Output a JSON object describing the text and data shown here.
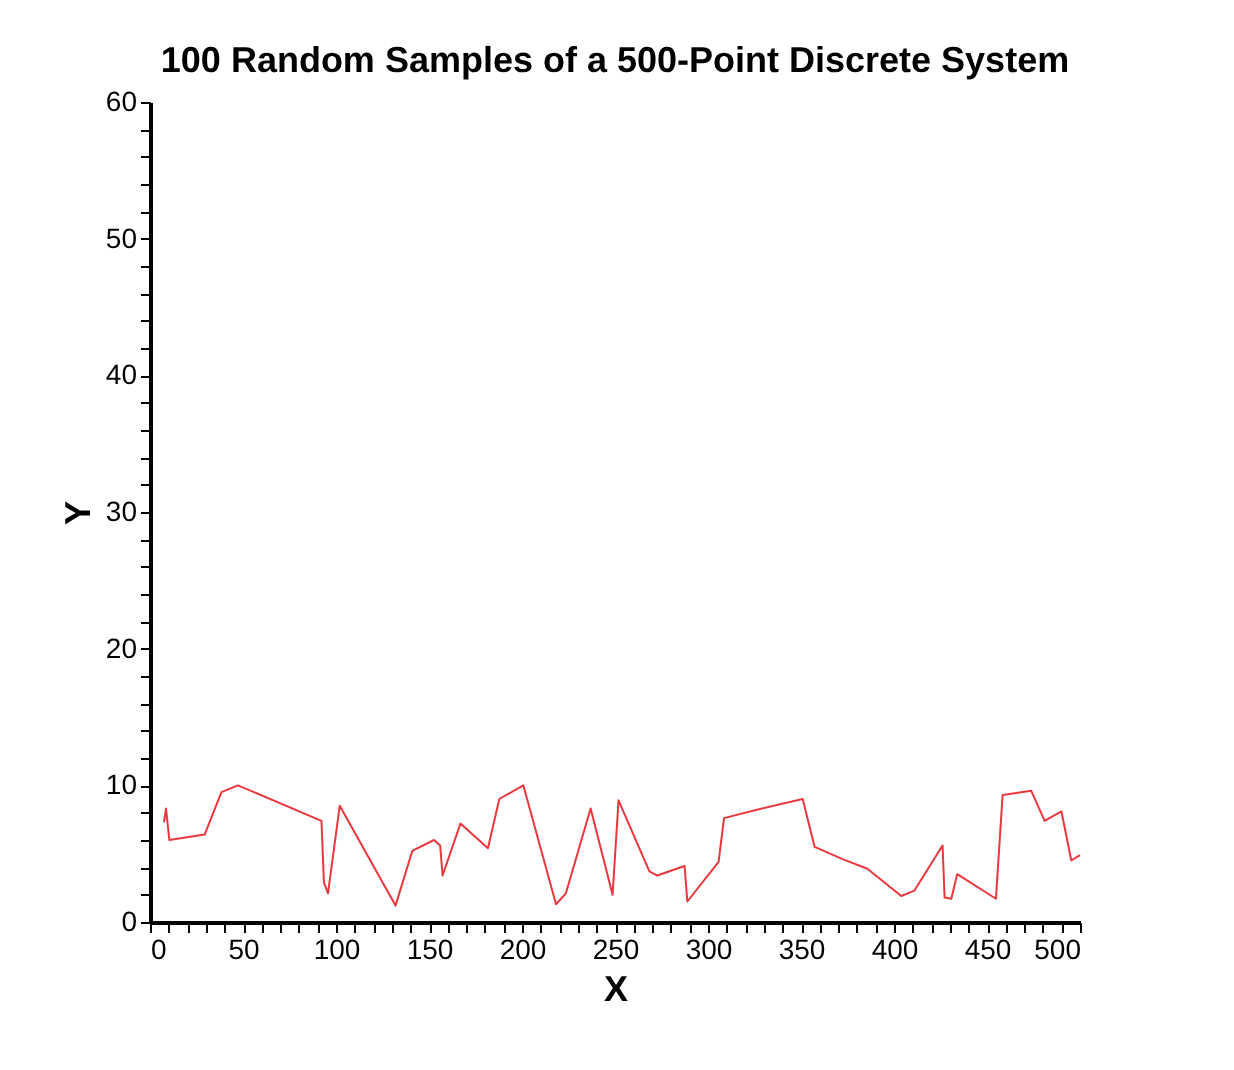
{
  "chart_data": {
    "type": "line",
    "title": "100 Random Samples of a 500-Point Discrete System",
    "xlabel": "X",
    "ylabel": "Y",
    "x": [
      7.5,
      8.6,
      10.4,
      29.4,
      38.4,
      47.3,
      92.2,
      93.5,
      95.7,
      102,
      132,
      141,
      152.7,
      156,
      157.3,
      166.9,
      181.7,
      187.8,
      200.7,
      218.3,
      223.6,
      236.9,
      248.7,
      251.9,
      268.5,
      272.7,
      287.4,
      288.9,
      305.7,
      308.6,
      325.8,
      350.9,
      357.3,
      372.4,
      385.7,
      403.9,
      411,
      426.1,
      427.2,
      430.8,
      434,
      454.8,
      458.4,
      473.8,
      481,
      490,
      495.3,
      500
    ],
    "series": [
      {
        "color": "#e8383d",
        "values": [
          7.3,
          8.3,
          6.0,
          6.4,
          9.5,
          10.0,
          7.4,
          2.9,
          2.1,
          8.5,
          1.2,
          5.2,
          6.0,
          5.6,
          3.4,
          7.2,
          5.4,
          9.0,
          10.0,
          1.3,
          2.1,
          8.3,
          2.0,
          8.9,
          3.7,
          3.4,
          4.1,
          1.5,
          4.4,
          7.6,
          8.2,
          9.0,
          5.5,
          4.6,
          3.9,
          1.9,
          2.3,
          5.6,
          1.8,
          1.7,
          3.5,
          1.7,
          9.3,
          9.6,
          7.4,
          8.1,
          4.5,
          4.9
        ]
      }
    ],
    "xlim": [
      0,
      500
    ],
    "ylim": [
      0,
      60
    ],
    "xticks": [
      0,
      {
        "value": 10,
        "label": null
      },
      {
        "value": 20,
        "label": null
      },
      {
        "value": 30,
        "label": null
      },
      {
        "value": 40,
        "label": null
      },
      50,
      {
        "value": 60,
        "label": null
      },
      {
        "value": 70,
        "label": null
      },
      {
        "value": 80,
        "label": null
      },
      {
        "value": 90,
        "label": null
      },
      100,
      {
        "value": 110,
        "label": null
      },
      {
        "value": 120,
        "label": null
      },
      {
        "value": 130,
        "label": null
      },
      {
        "value": 140,
        "label": null
      },
      150,
      {
        "value": 160,
        "label": null
      },
      {
        "value": 170,
        "label": null
      },
      {
        "value": 180,
        "label": null
      },
      {
        "value": 190,
        "label": null
      },
      200,
      {
        "value": 210,
        "label": null
      },
      {
        "value": 220,
        "label": null
      },
      {
        "value": 230,
        "label": null
      },
      {
        "value": 240,
        "label": null
      },
      250,
      {
        "value": 260,
        "label": null
      },
      {
        "value": 270,
        "label": null
      },
      {
        "value": 280,
        "label": null
      },
      {
        "value": 290,
        "label": null
      },
      300,
      {
        "value": 310,
        "label": null
      },
      {
        "value": 320,
        "label": null
      },
      {
        "value": 330,
        "label": null
      },
      {
        "value": 340,
        "label": null
      },
      350,
      {
        "value": 360,
        "label": null
      },
      {
        "value": 370,
        "label": null
      },
      {
        "value": 380,
        "label": null
      },
      {
        "value": 390,
        "label": null
      },
      400,
      {
        "value": 410,
        "label": null
      },
      {
        "value": 420,
        "label": null
      },
      {
        "value": 430,
        "label": null
      },
      {
        "value": 440,
        "label": null
      },
      450,
      {
        "value": 460,
        "label": null
      },
      {
        "value": 470,
        "label": null
      },
      {
        "value": 480,
        "label": null
      },
      {
        "value": 490,
        "label": null
      },
      500
    ],
    "yticks": [
      0,
      {
        "value": 2,
        "label": null
      },
      {
        "value": 4,
        "label": null
      },
      {
        "value": 6,
        "label": null
      },
      {
        "value": 8,
        "label": null
      },
      10,
      {
        "value": 12,
        "label": null
      },
      {
        "value": 14,
        "label": null
      },
      {
        "value": 16,
        "label": null
      },
      {
        "value": 18,
        "label": null
      },
      20,
      {
        "value": 22,
        "label": null
      },
      {
        "value": 24,
        "label": null
      },
      {
        "value": 26,
        "label": null
      },
      {
        "value": 28,
        "label": null
      },
      30,
      {
        "value": 32,
        "label": null
      },
      {
        "value": 34,
        "label": null
      },
      {
        "value": 36,
        "label": null
      },
      {
        "value": 38,
        "label": null
      },
      40,
      {
        "value": 42,
        "label": null
      },
      {
        "value": 44,
        "label": null
      },
      {
        "value": 46,
        "label": null
      },
      {
        "value": 48,
        "label": null
      },
      50,
      {
        "value": 52,
        "label": null
      },
      {
        "value": 54,
        "label": null
      },
      {
        "value": 56,
        "label": null
      },
      {
        "value": 58,
        "label": null
      },
      60
    ],
    "marker": "none",
    "line_style": "solid"
  }
}
